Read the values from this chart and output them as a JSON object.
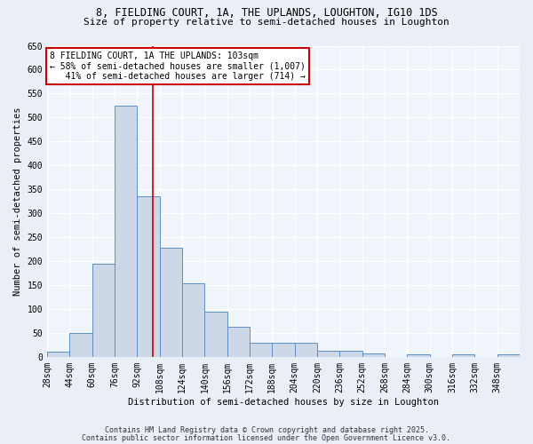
{
  "title_line1": "8, FIELDING COURT, 1A, THE UPLANDS, LOUGHTON, IG10 1DS",
  "title_line2": "Size of property relative to semi-detached houses in Loughton",
  "xlabel": "Distribution of semi-detached houses by size in Loughton",
  "ylabel": "Number of semi-detached properties",
  "bin_labels": [
    "28sqm",
    "44sqm",
    "60sqm",
    "76sqm",
    "92sqm",
    "108sqm",
    "124sqm",
    "140sqm",
    "156sqm",
    "172sqm",
    "188sqm",
    "204sqm",
    "220sqm",
    "236sqm",
    "252sqm",
    "268sqm",
    "284sqm",
    "300sqm",
    "316sqm",
    "332sqm",
    "348sqm"
  ],
  "bin_starts": [
    28,
    44,
    60,
    76,
    92,
    108,
    124,
    140,
    156,
    172,
    188,
    204,
    220,
    236,
    252,
    268,
    284,
    300,
    316,
    332,
    348
  ],
  "bin_width": 16,
  "bar_heights": [
    10,
    50,
    195,
    525,
    335,
    228,
    153,
    95,
    63,
    30,
    30,
    30,
    13,
    13,
    7,
    0,
    5,
    0,
    5,
    0,
    5
  ],
  "bar_color": "#ccd8e8",
  "bar_edge_color": "#5b8fc4",
  "property_size": 103,
  "vline_color": "#cc0000",
  "annotation_line1": "8 FIELDING COURT, 1A THE UPLANDS: 103sqm",
  "annotation_line2": "← 58% of semi-detached houses are smaller (1,007)",
  "annotation_line3": "   41% of semi-detached houses are larger (714) →",
  "annotation_box_color": "#ffffff",
  "annotation_box_edge": "#cc0000",
  "ylim": [
    0,
    650
  ],
  "yticks": [
    0,
    50,
    100,
    150,
    200,
    250,
    300,
    350,
    400,
    450,
    500,
    550,
    600,
    650
  ],
  "footer_line1": "Contains HM Land Registry data © Crown copyright and database right 2025.",
  "footer_line2": "Contains public sector information licensed under the Open Government Licence v3.0.",
  "bg_color": "#eaeff7",
  "plot_bg_color": "#f0f4fb",
  "grid_color": "#ffffff",
  "title_fontsize": 8.5,
  "subtitle_fontsize": 8.0,
  "axis_label_fontsize": 7.5,
  "tick_fontsize": 7.0,
  "annot_fontsize": 7.0,
  "footer_fontsize": 6.0
}
